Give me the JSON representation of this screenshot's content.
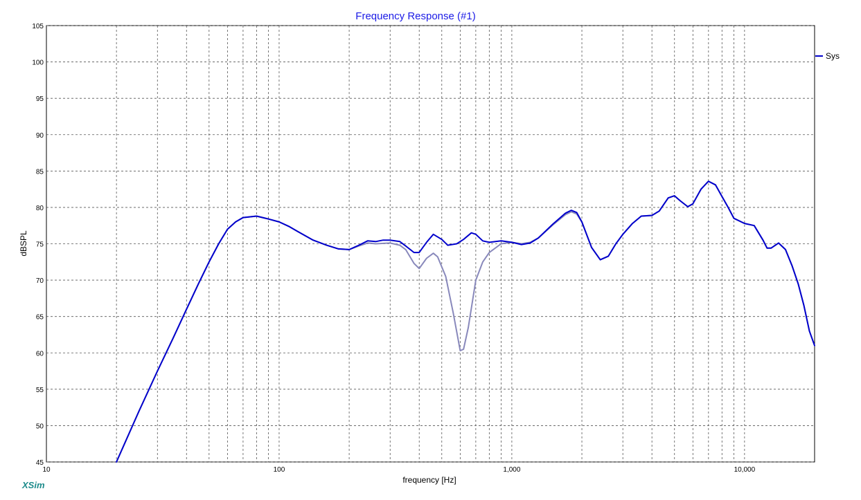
{
  "brand": "XSim",
  "chart_data": {
    "type": "line",
    "title": "Frequency Response (#1)",
    "xlabel": "frequency [Hz]",
    "ylabel": "dBSPL",
    "x_scale": "log",
    "xlim": [
      10,
      20000
    ],
    "ylim": [
      45,
      105
    ],
    "x_ticks": [
      {
        "value": 10,
        "label": "10"
      },
      {
        "value": 100,
        "label": "100"
      },
      {
        "value": 1000,
        "label": "1,000"
      },
      {
        "value": 10000,
        "label": "10,000"
      }
    ],
    "y_ticks": [
      45,
      50,
      55,
      60,
      65,
      70,
      75,
      80,
      85,
      90,
      95,
      100,
      105
    ],
    "grid": true,
    "legend": {
      "position": "right",
      "entries": [
        "Sys"
      ]
    },
    "series": [
      {
        "name": "Sys",
        "color": "#0000cc",
        "points": [
          [
            20,
            45
          ],
          [
            25,
            52
          ],
          [
            30,
            57.5
          ],
          [
            35,
            62
          ],
          [
            40,
            66
          ],
          [
            45,
            69.5
          ],
          [
            50,
            72.5
          ],
          [
            55,
            75
          ],
          [
            60,
            77
          ],
          [
            65,
            78
          ],
          [
            70,
            78.6
          ],
          [
            80,
            78.8
          ],
          [
            90,
            78.4
          ],
          [
            100,
            78
          ],
          [
            110,
            77.4
          ],
          [
            120,
            76.7
          ],
          [
            140,
            75.5
          ],
          [
            160,
            74.8
          ],
          [
            180,
            74.3
          ],
          [
            200,
            74.2
          ],
          [
            220,
            74.8
          ],
          [
            240,
            75.4
          ],
          [
            260,
            75.3
          ],
          [
            280,
            75.5
          ],
          [
            300,
            75.5
          ],
          [
            330,
            75.3
          ],
          [
            350,
            74.7
          ],
          [
            380,
            73.8
          ],
          [
            400,
            73.8
          ],
          [
            430,
            75.2
          ],
          [
            460,
            76.3
          ],
          [
            500,
            75.6
          ],
          [
            530,
            74.8
          ],
          [
            580,
            75
          ],
          [
            620,
            75.6
          ],
          [
            670,
            76.5
          ],
          [
            700,
            76.3
          ],
          [
            750,
            75.4
          ],
          [
            800,
            75.2
          ],
          [
            900,
            75.4
          ],
          [
            1000,
            75.2
          ],
          [
            1100,
            74.9
          ],
          [
            1200,
            75.1
          ],
          [
            1300,
            75.8
          ],
          [
            1500,
            77.7
          ],
          [
            1700,
            79.2
          ],
          [
            1800,
            79.6
          ],
          [
            1900,
            79.3
          ],
          [
            2000,
            78
          ],
          [
            2200,
            74.5
          ],
          [
            2400,
            72.8
          ],
          [
            2600,
            73.3
          ],
          [
            2800,
            75
          ],
          [
            3000,
            76.3
          ],
          [
            3300,
            77.8
          ],
          [
            3600,
            78.8
          ],
          [
            4000,
            78.9
          ],
          [
            4300,
            79.5
          ],
          [
            4700,
            81.3
          ],
          [
            5000,
            81.6
          ],
          [
            5300,
            80.9
          ],
          [
            5700,
            80.1
          ],
          [
            6000,
            80.5
          ],
          [
            6500,
            82.5
          ],
          [
            7000,
            83.6
          ],
          [
            7500,
            83.1
          ],
          [
            8000,
            81.5
          ],
          [
            8500,
            80
          ],
          [
            9000,
            78.5
          ],
          [
            10000,
            77.8
          ],
          [
            11000,
            77.5
          ],
          [
            12000,
            75.5
          ],
          [
            12500,
            74.4
          ],
          [
            13000,
            74.4
          ],
          [
            14000,
            75.1
          ],
          [
            15000,
            74.2
          ],
          [
            16000,
            72
          ],
          [
            17000,
            69.5
          ],
          [
            18000,
            66.5
          ],
          [
            19000,
            63
          ],
          [
            20000,
            61
          ]
        ]
      },
      {
        "name": "",
        "color": "#8888bb",
        "points": [
          [
            20,
            45
          ],
          [
            25,
            52
          ],
          [
            30,
            57.5
          ],
          [
            35,
            62
          ],
          [
            40,
            66
          ],
          [
            45,
            69.5
          ],
          [
            50,
            72.5
          ],
          [
            55,
            75
          ],
          [
            60,
            77
          ],
          [
            65,
            78
          ],
          [
            70,
            78.6
          ],
          [
            80,
            78.8
          ],
          [
            90,
            78.4
          ],
          [
            100,
            78
          ],
          [
            110,
            77.4
          ],
          [
            120,
            76.7
          ],
          [
            140,
            75.5
          ],
          [
            160,
            74.8
          ],
          [
            180,
            74.3
          ],
          [
            200,
            74.2
          ],
          [
            220,
            74.7
          ],
          [
            240,
            75.1
          ],
          [
            260,
            75
          ],
          [
            300,
            75.1
          ],
          [
            330,
            74.8
          ],
          [
            350,
            74.2
          ],
          [
            380,
            72.3
          ],
          [
            400,
            71.6
          ],
          [
            430,
            73
          ],
          [
            460,
            73.7
          ],
          [
            480,
            73.2
          ],
          [
            520,
            70.5
          ],
          [
            560,
            65.5
          ],
          [
            600,
            60.3
          ],
          [
            620,
            60.5
          ],
          [
            650,
            63.5
          ],
          [
            700,
            70
          ],
          [
            750,
            72.5
          ],
          [
            800,
            73.8
          ],
          [
            900,
            75
          ],
          [
            1000,
            75.2
          ],
          [
            1100,
            75
          ],
          [
            1200,
            75.2
          ],
          [
            1300,
            75.8
          ],
          [
            1500,
            77.6
          ],
          [
            1700,
            79
          ],
          [
            1800,
            79.4
          ],
          [
            1900,
            79.1
          ],
          [
            2000,
            78
          ],
          [
            2200,
            74.5
          ],
          [
            2400,
            72.8
          ],
          [
            2600,
            73.3
          ],
          [
            2800,
            75
          ],
          [
            3000,
            76.3
          ],
          [
            3300,
            77.8
          ],
          [
            3600,
            78.8
          ],
          [
            4000,
            78.9
          ],
          [
            4300,
            79.5
          ],
          [
            4700,
            81.3
          ],
          [
            5000,
            81.6
          ],
          [
            5300,
            80.9
          ],
          [
            5700,
            80.1
          ],
          [
            6000,
            80.5
          ],
          [
            6500,
            82.5
          ],
          [
            7000,
            83.6
          ],
          [
            7500,
            83.1
          ],
          [
            8000,
            81.5
          ],
          [
            8500,
            80
          ],
          [
            9000,
            78.5
          ],
          [
            10000,
            77.8
          ],
          [
            11000,
            77.5
          ],
          [
            12000,
            75.5
          ],
          [
            12500,
            74.4
          ],
          [
            13000,
            74.4
          ],
          [
            14000,
            75.1
          ],
          [
            15000,
            74.2
          ],
          [
            16000,
            72
          ],
          [
            17000,
            69.5
          ],
          [
            18000,
            66.5
          ],
          [
            19000,
            63
          ],
          [
            20000,
            61
          ]
        ]
      }
    ]
  }
}
